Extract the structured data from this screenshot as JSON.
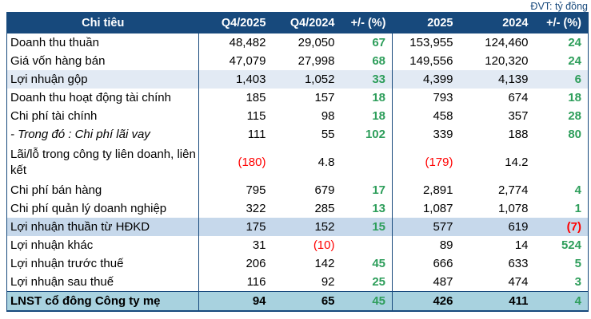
{
  "meta": {
    "unit_label": "ĐVT: tỷ đồng"
  },
  "colors": {
    "header_bg": "#17497C",
    "header_text": "#FFFFFF",
    "unit_text": "#17497C",
    "positive_pct": "#2E9E5B",
    "negative": "#FF0000",
    "row_gross_profit_bg": "#E2EAF4",
    "row_operating_profit_bg": "#C6D8EB",
    "row_total_bg": "#A8D2DF",
    "table_border": "#17497C"
  },
  "table": {
    "headers": [
      {
        "label": "Chi tiêu"
      },
      {
        "label": "Q4/2025"
      },
      {
        "label": "Q4/2024"
      },
      {
        "label": "+/- (%)"
      },
      {
        "label": "2025"
      },
      {
        "label": "2024"
      },
      {
        "label": "+/- (%)"
      }
    ],
    "rows": [
      {
        "label": "Doanh thu thuần",
        "label_style": "normal",
        "row_style": "plain",
        "tall": false,
        "cells": [
          {
            "t": "48,482",
            "s": "num"
          },
          {
            "t": "29,050",
            "s": "num"
          },
          {
            "t": "67",
            "s": "pct"
          },
          {
            "t": "153,955",
            "s": "num"
          },
          {
            "t": "124,460",
            "s": "num"
          },
          {
            "t": "24",
            "s": "pct"
          }
        ]
      },
      {
        "label": "Giá vốn hàng bán",
        "label_style": "normal",
        "row_style": "plain",
        "tall": false,
        "cells": [
          {
            "t": "47,079",
            "s": "num"
          },
          {
            "t": "27,998",
            "s": "num"
          },
          {
            "t": "68",
            "s": "pct"
          },
          {
            "t": "149,556",
            "s": "num"
          },
          {
            "t": "120,320",
            "s": "num"
          },
          {
            "t": "24",
            "s": "pct"
          }
        ]
      },
      {
        "label": "Lợi nhuận gộp",
        "label_style": "normal",
        "row_style": "subtotal1",
        "tall": false,
        "cells": [
          {
            "t": "1,403",
            "s": "num"
          },
          {
            "t": "1,052",
            "s": "num"
          },
          {
            "t": "33",
            "s": "pct"
          },
          {
            "t": "4,399",
            "s": "num"
          },
          {
            "t": "4,139",
            "s": "num"
          },
          {
            "t": "6",
            "s": "pct"
          }
        ]
      },
      {
        "label": "Doanh thu hoạt động tài chính",
        "label_style": "normal",
        "row_style": "plain",
        "tall": false,
        "cells": [
          {
            "t": "185",
            "s": "num"
          },
          {
            "t": "157",
            "s": "num"
          },
          {
            "t": "18",
            "s": "pct"
          },
          {
            "t": "793",
            "s": "num"
          },
          {
            "t": "674",
            "s": "num"
          },
          {
            "t": "18",
            "s": "pct"
          }
        ]
      },
      {
        "label": "Chi phí tài chính",
        "label_style": "normal",
        "row_style": "plain",
        "tall": false,
        "cells": [
          {
            "t": "115",
            "s": "num"
          },
          {
            "t": "98",
            "s": "num"
          },
          {
            "t": "18",
            "s": "pct"
          },
          {
            "t": "458",
            "s": "num"
          },
          {
            "t": "357",
            "s": "num"
          },
          {
            "t": "28",
            "s": "pct"
          }
        ]
      },
      {
        "label": "- Trong đó : Chi phí lãi vay",
        "label_style": "italic",
        "row_style": "plain",
        "tall": false,
        "cells": [
          {
            "t": "111",
            "s": "num"
          },
          {
            "t": "55",
            "s": "num"
          },
          {
            "t": "102",
            "s": "pct"
          },
          {
            "t": "339",
            "s": "num"
          },
          {
            "t": "188",
            "s": "num"
          },
          {
            "t": "80",
            "s": "pct"
          }
        ]
      },
      {
        "label": "Lãi/lỗ trong công ty liên doanh, liên kết",
        "label_style": "normal",
        "row_style": "plain",
        "tall": true,
        "cells": [
          {
            "t": "(180)",
            "s": "neg"
          },
          {
            "t": "4.8",
            "s": "num"
          },
          {
            "t": "",
            "s": "num"
          },
          {
            "t": "(179)",
            "s": "neg"
          },
          {
            "t": "14.2",
            "s": "num"
          },
          {
            "t": "",
            "s": "num"
          }
        ]
      },
      {
        "label": "Chi phí bán hàng",
        "label_style": "normal",
        "row_style": "plain",
        "tall": false,
        "cells": [
          {
            "t": "795",
            "s": "num"
          },
          {
            "t": "679",
            "s": "num"
          },
          {
            "t": "17",
            "s": "pct"
          },
          {
            "t": "2,891",
            "s": "num"
          },
          {
            "t": "2,774",
            "s": "num"
          },
          {
            "t": "4",
            "s": "pct"
          }
        ]
      },
      {
        "label": "Chi phí quản lý doanh nghiệp",
        "label_style": "normal",
        "row_style": "plain",
        "tall": false,
        "cells": [
          {
            "t": "322",
            "s": "num"
          },
          {
            "t": "285",
            "s": "num"
          },
          {
            "t": "13",
            "s": "pct"
          },
          {
            "t": "1,087",
            "s": "num"
          },
          {
            "t": "1,078",
            "s": "num"
          },
          {
            "t": "1",
            "s": "pct"
          }
        ]
      },
      {
        "label": "Lợi nhuận thuần từ HĐKD",
        "label_style": "normal",
        "row_style": "subtotal2",
        "tall": false,
        "cells": [
          {
            "t": "175",
            "s": "num"
          },
          {
            "t": "152",
            "s": "num"
          },
          {
            "t": "15",
            "s": "pct"
          },
          {
            "t": "577",
            "s": "num"
          },
          {
            "t": "619",
            "s": "num"
          },
          {
            "t": "(7)",
            "s": "pctneg"
          }
        ]
      },
      {
        "label": "Lợi nhuận khác",
        "label_style": "normal",
        "row_style": "plain",
        "tall": false,
        "cells": [
          {
            "t": "31",
            "s": "num"
          },
          {
            "t": "(10)",
            "s": "neg"
          },
          {
            "t": "",
            "s": "num"
          },
          {
            "t": "89",
            "s": "num"
          },
          {
            "t": "14",
            "s": "num"
          },
          {
            "t": "524",
            "s": "pct"
          }
        ]
      },
      {
        "label": "Lợi nhuận trước thuế",
        "label_style": "normal",
        "row_style": "plain",
        "tall": false,
        "cells": [
          {
            "t": "206",
            "s": "num"
          },
          {
            "t": "142",
            "s": "num"
          },
          {
            "t": "45",
            "s": "pct"
          },
          {
            "t": "666",
            "s": "num"
          },
          {
            "t": "633",
            "s": "num"
          },
          {
            "t": "5",
            "s": "pct"
          }
        ]
      },
      {
        "label": "Lợi nhuận sau thuế",
        "label_style": "normal",
        "row_style": "plain",
        "tall": false,
        "cells": [
          {
            "t": "116",
            "s": "num"
          },
          {
            "t": "92",
            "s": "num"
          },
          {
            "t": "25",
            "s": "pct"
          },
          {
            "t": "487",
            "s": "num"
          },
          {
            "t": "474",
            "s": "num"
          },
          {
            "t": "3",
            "s": "pct"
          }
        ]
      },
      {
        "label": "LNST cổ đông Công ty mẹ",
        "label_style": "normal",
        "row_style": "total",
        "tall": false,
        "cells": [
          {
            "t": "94",
            "s": "num"
          },
          {
            "t": "65",
            "s": "num"
          },
          {
            "t": "45",
            "s": "pct"
          },
          {
            "t": "426",
            "s": "num"
          },
          {
            "t": "411",
            "s": "num"
          },
          {
            "t": "4",
            "s": "pct"
          }
        ]
      }
    ]
  }
}
